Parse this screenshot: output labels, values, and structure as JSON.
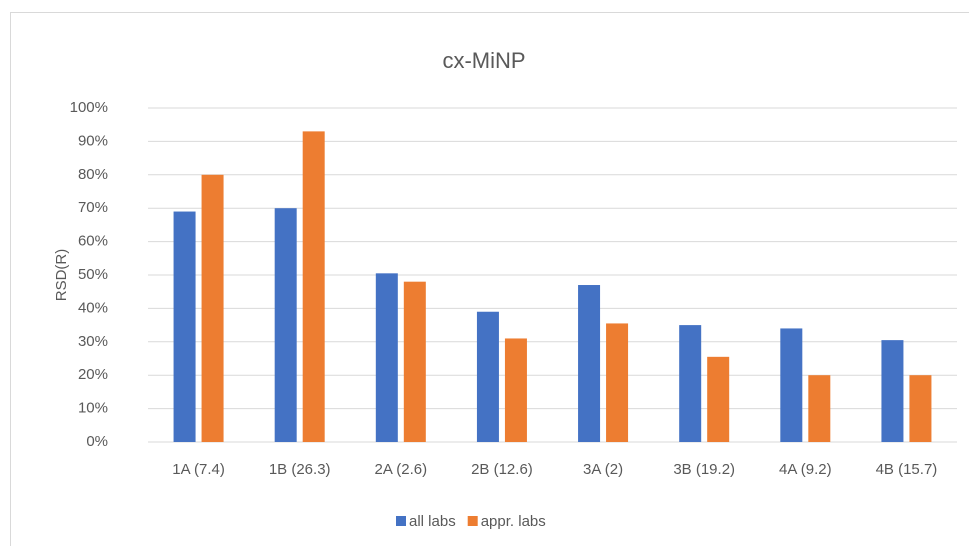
{
  "chart_data": {
    "type": "bar",
    "title": "cx-MiNP",
    "y_label": "RSD(R)",
    "categories": [
      "1A (7.4)",
      "1B (26.3)",
      "2A (2.6)",
      "2B (12.6)",
      "3A (2)",
      "3B (19.2)",
      "4A (9.2)",
      "4B (15.7)"
    ],
    "series": [
      {
        "name": "all labs",
        "color": "#4472c4",
        "values": [
          69,
          70,
          50.5,
          39,
          47,
          35,
          34,
          30.5
        ]
      },
      {
        "name": "appr. labs",
        "color": "#ed7d31",
        "values": [
          80,
          93,
          48,
          31,
          35.5,
          25.5,
          20,
          20
        ]
      }
    ],
    "ylim": [
      0,
      100
    ],
    "yticks": [
      {
        "value": 0,
        "label": "0%"
      },
      {
        "value": 10,
        "label": "10%"
      },
      {
        "value": 20,
        "label": "20%"
      },
      {
        "value": 30,
        "label": "30%"
      },
      {
        "value": 40,
        "label": "40%"
      },
      {
        "value": 50,
        "label": "50%"
      },
      {
        "value": 60,
        "label": "60%"
      },
      {
        "value": 70,
        "label": "70%"
      },
      {
        "value": 80,
        "label": "80%"
      },
      {
        "value": 90,
        "label": "90%"
      },
      {
        "value": 100,
        "label": "100%"
      }
    ],
    "grid": true,
    "legend": "bottom"
  }
}
